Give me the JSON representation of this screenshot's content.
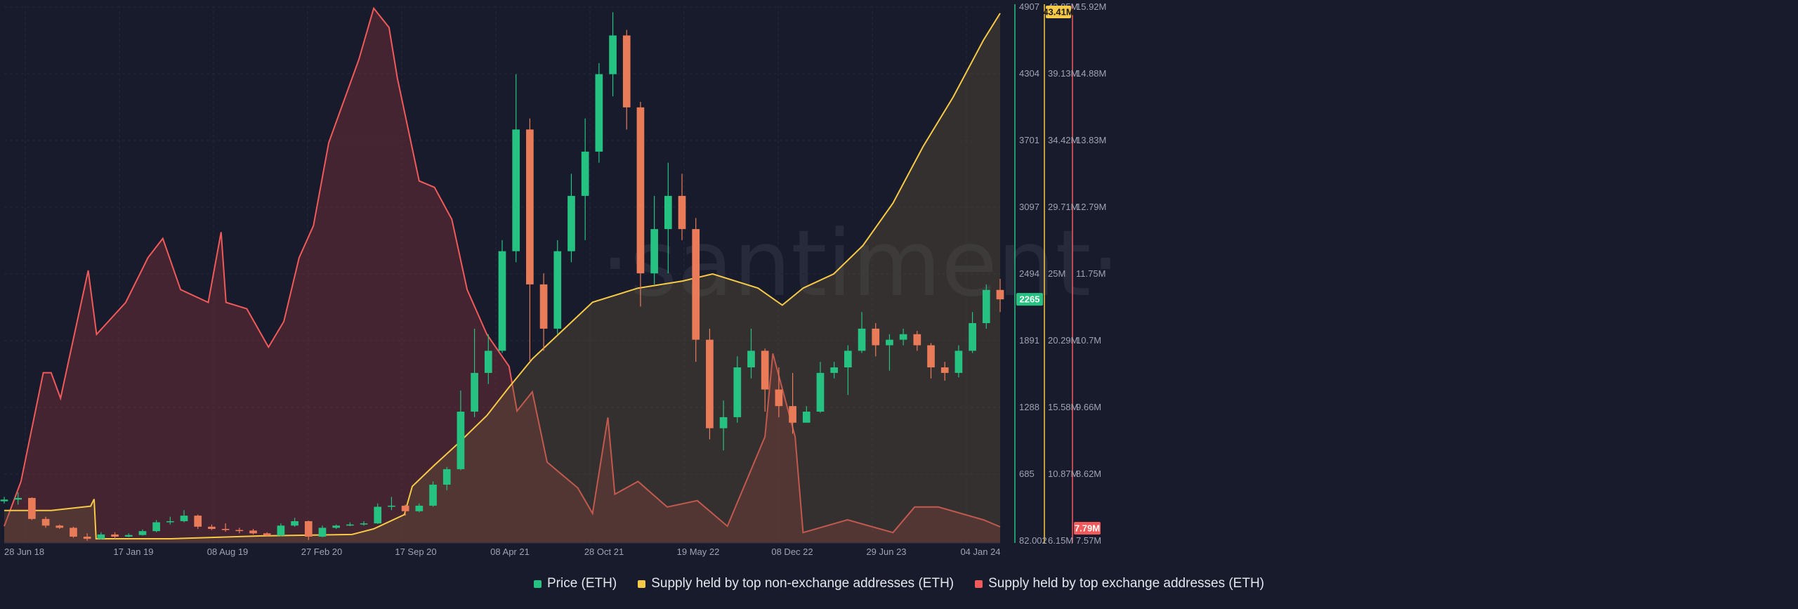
{
  "watermark": "·santiment·",
  "chart_data": {
    "type": "line",
    "x_tick_labels": [
      "28 Jun 18",
      "17 Jan 19",
      "08 Aug 19",
      "27 Feb 20",
      "17 Sep 20",
      "08 Apr 21",
      "28 Oct 21",
      "19 May 22",
      "08 Dec 22",
      "29 Jun 23",
      "04 Jan 24"
    ],
    "x_range": [
      "2018-06-28",
      "2024-01-04"
    ],
    "axes": {
      "price": {
        "ticks": [
          "4907",
          "4304",
          "3701",
          "3097",
          "2494",
          "1891",
          "1288",
          "685",
          "82.002"
        ],
        "ylim": [
          82.002,
          4907
        ],
        "current": 2265,
        "current_label": "2265",
        "color": "#26c281"
      },
      "non_exchange": {
        "ticks": [
          "43.85M",
          "39.13M",
          "34.42M",
          "29.71M",
          "25M",
          "20.29M",
          "15.58M",
          "10.87M",
          "6.15M"
        ],
        "ylim": [
          6.15,
          43.85
        ],
        "unit": "M",
        "current_label": "43.41M",
        "color": "#f7c948"
      },
      "exchange": {
        "ticks": [
          "15.92M",
          "14.88M",
          "13.83M",
          "12.79M",
          "11.75M",
          "10.7M",
          "9.66M",
          "8.62M",
          "7.57M"
        ],
        "ylim": [
          7.57,
          15.92
        ],
        "unit": "M",
        "current_label": "7.79M",
        "color": "#f05a5a"
      }
    },
    "series": [
      {
        "name": "Price (ETH)",
        "type": "candlestick",
        "axis": "price",
        "color": "#26c281",
        "down_color": "#ea7b59",
        "points": [
          {
            "x": "2018-06-28",
            "o": 440,
            "h": 480,
            "l": 420,
            "c": 455
          },
          {
            "x": "2018-07-26",
            "o": 455,
            "h": 520,
            "l": 410,
            "c": 470
          },
          {
            "x": "2018-08-23",
            "o": 470,
            "h": 475,
            "l": 270,
            "c": 280
          },
          {
            "x": "2018-09-20",
            "o": 280,
            "h": 300,
            "l": 200,
            "c": 220
          },
          {
            "x": "2018-10-18",
            "o": 220,
            "h": 230,
            "l": 190,
            "c": 200
          },
          {
            "x": "2018-11-15",
            "o": 200,
            "h": 210,
            "l": 110,
            "c": 120
          },
          {
            "x": "2018-12-13",
            "o": 120,
            "h": 150,
            "l": 83,
            "c": 100
          },
          {
            "x": "2019-01-10",
            "o": 100,
            "h": 160,
            "l": 95,
            "c": 140
          },
          {
            "x": "2019-02-07",
            "o": 140,
            "h": 160,
            "l": 100,
            "c": 120
          },
          {
            "x": "2019-03-07",
            "o": 120,
            "h": 150,
            "l": 115,
            "c": 135
          },
          {
            "x": "2019-04-04",
            "o": 135,
            "h": 185,
            "l": 130,
            "c": 170
          },
          {
            "x": "2019-05-02",
            "o": 170,
            "h": 270,
            "l": 160,
            "c": 250
          },
          {
            "x": "2019-05-30",
            "o": 250,
            "h": 300,
            "l": 230,
            "c": 260
          },
          {
            "x": "2019-06-27",
            "o": 260,
            "h": 360,
            "l": 250,
            "c": 310
          },
          {
            "x": "2019-07-25",
            "o": 310,
            "h": 320,
            "l": 190,
            "c": 210
          },
          {
            "x": "2019-08-22",
            "o": 210,
            "h": 230,
            "l": 180,
            "c": 190
          },
          {
            "x": "2019-09-19",
            "o": 190,
            "h": 240,
            "l": 165,
            "c": 180
          },
          {
            "x": "2019-10-17",
            "o": 180,
            "h": 200,
            "l": 150,
            "c": 175
          },
          {
            "x": "2019-11-14",
            "o": 175,
            "h": 190,
            "l": 140,
            "c": 150
          },
          {
            "x": "2019-12-12",
            "o": 150,
            "h": 160,
            "l": 125,
            "c": 130
          },
          {
            "x": "2020-01-09",
            "o": 130,
            "h": 240,
            "l": 125,
            "c": 220
          },
          {
            "x": "2020-02-06",
            "o": 220,
            "h": 290,
            "l": 210,
            "c": 260
          },
          {
            "x": "2020-03-05",
            "o": 260,
            "h": 265,
            "l": 90,
            "c": 120
          },
          {
            "x": "2020-04-02",
            "o": 120,
            "h": 220,
            "l": 115,
            "c": 200
          },
          {
            "x": "2020-04-30",
            "o": 200,
            "h": 230,
            "l": 190,
            "c": 220
          },
          {
            "x": "2020-05-28",
            "o": 220,
            "h": 250,
            "l": 215,
            "c": 230
          },
          {
            "x": "2020-06-25",
            "o": 230,
            "h": 260,
            "l": 220,
            "c": 240
          },
          {
            "x": "2020-07-23",
            "o": 240,
            "h": 420,
            "l": 235,
            "c": 390
          },
          {
            "x": "2020-08-20",
            "o": 390,
            "h": 480,
            "l": 360,
            "c": 400
          },
          {
            "x": "2020-09-17",
            "o": 400,
            "h": 410,
            "l": 310,
            "c": 350
          },
          {
            "x": "2020-10-15",
            "o": 350,
            "h": 420,
            "l": 340,
            "c": 400
          },
          {
            "x": "2020-11-12",
            "o": 400,
            "h": 620,
            "l": 390,
            "c": 590
          },
          {
            "x": "2020-12-10",
            "o": 590,
            "h": 750,
            "l": 540,
            "c": 730
          },
          {
            "x": "2021-01-07",
            "o": 730,
            "h": 1440,
            "l": 720,
            "c": 1250
          },
          {
            "x": "2021-02-04",
            "o": 1250,
            "h": 2000,
            "l": 1200,
            "c": 1600
          },
          {
            "x": "2021-03-04",
            "o": 1600,
            "h": 1950,
            "l": 1500,
            "c": 1800
          },
          {
            "x": "2021-04-01",
            "o": 1800,
            "h": 2800,
            "l": 1780,
            "c": 2700
          },
          {
            "x": "2021-04-29",
            "o": 2700,
            "h": 4300,
            "l": 2600,
            "c": 3800
          },
          {
            "x": "2021-05-27",
            "o": 3800,
            "h": 3900,
            "l": 1700,
            "c": 2400
          },
          {
            "x": "2021-06-24",
            "o": 2400,
            "h": 2500,
            "l": 1800,
            "c": 2000
          },
          {
            "x": "2021-07-22",
            "o": 2000,
            "h": 2800,
            "l": 1950,
            "c": 2700
          },
          {
            "x": "2021-08-19",
            "o": 2700,
            "h": 3400,
            "l": 2600,
            "c": 3200
          },
          {
            "x": "2021-09-16",
            "o": 3200,
            "h": 3900,
            "l": 2800,
            "c": 3600
          },
          {
            "x": "2021-10-14",
            "o": 3600,
            "h": 4400,
            "l": 3500,
            "c": 4300
          },
          {
            "x": "2021-11-11",
            "o": 4300,
            "h": 4860,
            "l": 4100,
            "c": 4650
          },
          {
            "x": "2021-12-09",
            "o": 4650,
            "h": 4700,
            "l": 3800,
            "c": 4000
          },
          {
            "x": "2022-01-06",
            "o": 4000,
            "h": 4050,
            "l": 2200,
            "c": 2500
          },
          {
            "x": "2022-02-03",
            "o": 2500,
            "h": 3200,
            "l": 2400,
            "c": 2900
          },
          {
            "x": "2022-03-03",
            "o": 2900,
            "h": 3500,
            "l": 2500,
            "c": 3200
          },
          {
            "x": "2022-03-31",
            "o": 3200,
            "h": 3400,
            "l": 2800,
            "c": 2900
          },
          {
            "x": "2022-04-28",
            "o": 2900,
            "h": 3000,
            "l": 1700,
            "c": 1900
          },
          {
            "x": "2022-05-26",
            "o": 1900,
            "h": 2000,
            "l": 1000,
            "c": 1100
          },
          {
            "x": "2022-06-23",
            "o": 1100,
            "h": 1350,
            "l": 900,
            "c": 1200
          },
          {
            "x": "2022-07-21",
            "o": 1200,
            "h": 1750,
            "l": 1150,
            "c": 1650
          },
          {
            "x": "2022-08-18",
            "o": 1650,
            "h": 2000,
            "l": 1550,
            "c": 1800
          },
          {
            "x": "2022-09-15",
            "o": 1800,
            "h": 1820,
            "l": 1250,
            "c": 1450
          },
          {
            "x": "2022-10-13",
            "o": 1450,
            "h": 1650,
            "l": 1200,
            "c": 1300
          },
          {
            "x": "2022-11-10",
            "o": 1300,
            "h": 1600,
            "l": 1050,
            "c": 1150
          },
          {
            "x": "2022-12-08",
            "o": 1150,
            "h": 1300,
            "l": 1180,
            "c": 1250
          },
          {
            "x": "2023-01-05",
            "o": 1250,
            "h": 1700,
            "l": 1240,
            "c": 1600
          },
          {
            "x": "2023-02-02",
            "o": 1600,
            "h": 1700,
            "l": 1550,
            "c": 1650
          },
          {
            "x": "2023-03-02",
            "o": 1650,
            "h": 1850,
            "l": 1400,
            "c": 1800
          },
          {
            "x": "2023-03-30",
            "o": 1800,
            "h": 2150,
            "l": 1780,
            "c": 2000
          },
          {
            "x": "2023-04-27",
            "o": 2000,
            "h": 2050,
            "l": 1750,
            "c": 1850
          },
          {
            "x": "2023-05-25",
            "o": 1850,
            "h": 1950,
            "l": 1620,
            "c": 1900
          },
          {
            "x": "2023-06-22",
            "o": 1900,
            "h": 2000,
            "l": 1850,
            "c": 1950
          },
          {
            "x": "2023-07-20",
            "o": 1950,
            "h": 1980,
            "l": 1800,
            "c": 1850
          },
          {
            "x": "2023-08-17",
            "o": 1850,
            "h": 1870,
            "l": 1550,
            "c": 1650
          },
          {
            "x": "2023-09-14",
            "o": 1650,
            "h": 1700,
            "l": 1530,
            "c": 1600
          },
          {
            "x": "2023-10-12",
            "o": 1600,
            "h": 1850,
            "l": 1560,
            "c": 1800
          },
          {
            "x": "2023-11-09",
            "o": 1800,
            "h": 2150,
            "l": 1780,
            "c": 2050
          },
          {
            "x": "2023-12-07",
            "o": 2050,
            "h": 2400,
            "l": 2000,
            "c": 2350
          },
          {
            "x": "2024-01-04",
            "o": 2350,
            "h": 2450,
            "l": 2150,
            "c": 2265
          }
        ]
      },
      {
        "name": "Supply held by top non-exchange addresses (ETH)",
        "type": "area",
        "axis": "non_exchange",
        "color": "#f7c948",
        "unit": "M",
        "points": [
          {
            "x": "2018-06-28",
            "y": 8.3
          },
          {
            "x": "2018-10-01",
            "y": 8.3
          },
          {
            "x": "2018-12-20",
            "y": 8.6
          },
          {
            "x": "2018-12-27",
            "y": 9.1
          },
          {
            "x": "2018-12-31",
            "y": 6.3
          },
          {
            "x": "2019-06-01",
            "y": 6.3
          },
          {
            "x": "2019-12-01",
            "y": 6.5
          },
          {
            "x": "2020-06-01",
            "y": 6.6
          },
          {
            "x": "2020-07-15",
            "y": 7.0
          },
          {
            "x": "2020-09-15",
            "y": 8.0
          },
          {
            "x": "2020-10-01",
            "y": 10.0
          },
          {
            "x": "2020-11-15",
            "y": 11.5
          },
          {
            "x": "2021-01-01",
            "y": 13.0
          },
          {
            "x": "2021-03-01",
            "y": 15.0
          },
          {
            "x": "2021-04-15",
            "y": 17.0
          },
          {
            "x": "2021-06-01",
            "y": 19.0
          },
          {
            "x": "2021-08-01",
            "y": 21.0
          },
          {
            "x": "2021-10-01",
            "y": 23.0
          },
          {
            "x": "2022-01-01",
            "y": 24.0
          },
          {
            "x": "2022-04-01",
            "y": 24.5
          },
          {
            "x": "2022-06-01",
            "y": 25.0
          },
          {
            "x": "2022-09-01",
            "y": 24.0
          },
          {
            "x": "2022-10-20",
            "y": 22.8
          },
          {
            "x": "2022-12-01",
            "y": 24.0
          },
          {
            "x": "2023-02-01",
            "y": 25.0
          },
          {
            "x": "2023-04-01",
            "y": 27.0
          },
          {
            "x": "2023-06-01",
            "y": 30.0
          },
          {
            "x": "2023-08-01",
            "y": 34.0
          },
          {
            "x": "2023-10-01",
            "y": 37.5
          },
          {
            "x": "2023-12-01",
            "y": 41.5
          },
          {
            "x": "2024-01-04",
            "y": 43.41
          }
        ]
      },
      {
        "name": "Supply held by top exchange addresses (ETH)",
        "type": "area",
        "axis": "exchange",
        "color": "#f05a5a",
        "unit": "M",
        "points": [
          {
            "x": "2018-06-28",
            "y": 7.8
          },
          {
            "x": "2018-08-01",
            "y": 8.5
          },
          {
            "x": "2018-09-15",
            "y": 10.2
          },
          {
            "x": "2018-10-01",
            "y": 10.2
          },
          {
            "x": "2018-10-20",
            "y": 9.8
          },
          {
            "x": "2018-12-15",
            "y": 11.8
          },
          {
            "x": "2019-01-01",
            "y": 10.8
          },
          {
            "x": "2019-03-01",
            "y": 11.3
          },
          {
            "x": "2019-04-15",
            "y": 12.0
          },
          {
            "x": "2019-05-15",
            "y": 12.3
          },
          {
            "x": "2019-06-20",
            "y": 11.5
          },
          {
            "x": "2019-08-15",
            "y": 11.3
          },
          {
            "x": "2019-09-10",
            "y": 12.4
          },
          {
            "x": "2019-09-20",
            "y": 11.3
          },
          {
            "x": "2019-11-01",
            "y": 11.2
          },
          {
            "x": "2019-12-15",
            "y": 10.6
          },
          {
            "x": "2020-01-15",
            "y": 11.0
          },
          {
            "x": "2020-02-15",
            "y": 12.0
          },
          {
            "x": "2020-03-15",
            "y": 12.5
          },
          {
            "x": "2020-04-15",
            "y": 13.8
          },
          {
            "x": "2020-06-15",
            "y": 15.1
          },
          {
            "x": "2020-07-15",
            "y": 15.9
          },
          {
            "x": "2020-08-15",
            "y": 15.6
          },
          {
            "x": "2020-09-01",
            "y": 14.8
          },
          {
            "x": "2020-10-15",
            "y": 13.2
          },
          {
            "x": "2020-11-15",
            "y": 13.1
          },
          {
            "x": "2020-12-20",
            "y": 12.6
          },
          {
            "x": "2021-01-20",
            "y": 11.5
          },
          {
            "x": "2021-03-01",
            "y": 10.8
          },
          {
            "x": "2021-04-15",
            "y": 10.3
          },
          {
            "x": "2021-05-01",
            "y": 9.6
          },
          {
            "x": "2021-06-01",
            "y": 9.9
          },
          {
            "x": "2021-07-01",
            "y": 8.8
          },
          {
            "x": "2021-08-01",
            "y": 8.6
          },
          {
            "x": "2021-09-01",
            "y": 8.4
          },
          {
            "x": "2021-10-01",
            "y": 8.0
          },
          {
            "x": "2021-11-01",
            "y": 9.5
          },
          {
            "x": "2021-11-15",
            "y": 8.3
          },
          {
            "x": "2022-01-01",
            "y": 8.5
          },
          {
            "x": "2022-03-01",
            "y": 8.1
          },
          {
            "x": "2022-05-01",
            "y": 8.2
          },
          {
            "x": "2022-07-01",
            "y": 7.8
          },
          {
            "x": "2022-09-15",
            "y": 9.2
          },
          {
            "x": "2022-10-01",
            "y": 10.5
          },
          {
            "x": "2022-11-15",
            "y": 9.2
          },
          {
            "x": "2022-12-01",
            "y": 7.7
          },
          {
            "x": "2023-03-01",
            "y": 7.9
          },
          {
            "x": "2023-06-01",
            "y": 7.7
          },
          {
            "x": "2023-07-15",
            "y": 8.1
          },
          {
            "x": "2023-09-01",
            "y": 8.1
          },
          {
            "x": "2023-12-01",
            "y": 7.9
          },
          {
            "x": "2024-01-04",
            "y": 7.79
          }
        ]
      }
    ],
    "grid": true,
    "legend_position": "bottom-center"
  },
  "legend": [
    {
      "label": "Price (ETH)",
      "color": "#26c281"
    },
    {
      "label": "Supply held by top non-exchange addresses (ETH)",
      "color": "#f7c948"
    },
    {
      "label": "Supply held by top exchange addresses (ETH)",
      "color": "#f05a5a"
    }
  ]
}
